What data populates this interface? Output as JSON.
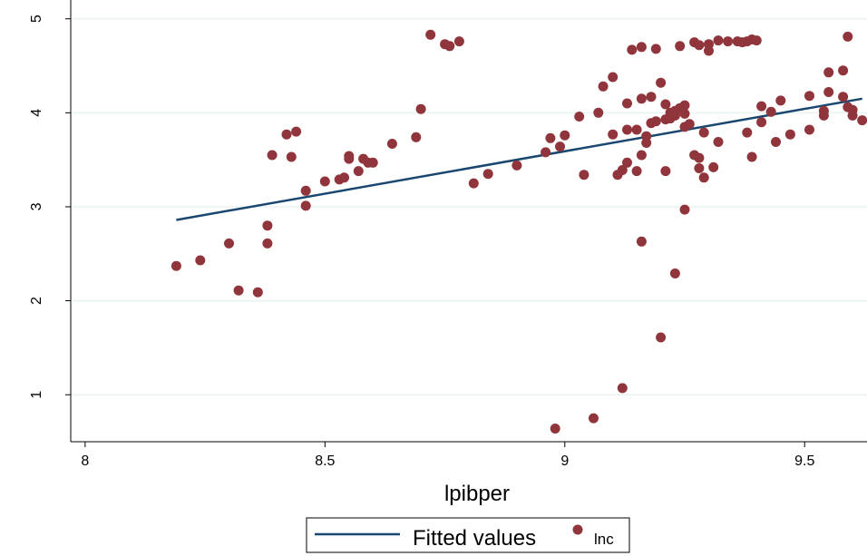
{
  "chart_data": {
    "type": "scatter",
    "title": "",
    "xlabel": "lpibper",
    "ylabel": "",
    "xlim": [
      7.97,
      9.63
    ],
    "ylim": [
      0.5,
      5.2
    ],
    "x_ticks": [
      8,
      8.5,
      9,
      9.5
    ],
    "x_tick_labels": [
      "8",
      "8.5",
      "9",
      "9.5"
    ],
    "y_ticks": [
      1,
      2,
      3,
      4,
      5
    ],
    "y_tick_labels": [
      "1",
      "2",
      "3",
      "4",
      "5"
    ],
    "grid": true,
    "legend_position": "bottom",
    "series": [
      {
        "name": "Fitted values",
        "kind": "line",
        "color": "#1a476f",
        "points": [
          [
            8.19,
            2.86
          ],
          [
            9.62,
            4.15
          ]
        ]
      },
      {
        "name": "lnc",
        "kind": "scatter",
        "color": "#90353b",
        "points": [
          [
            8.19,
            2.37
          ],
          [
            8.24,
            2.43
          ],
          [
            8.3,
            2.61
          ],
          [
            8.32,
            2.11
          ],
          [
            8.36,
            2.09
          ],
          [
            8.38,
            2.8
          ],
          [
            8.38,
            2.61
          ],
          [
            8.39,
            3.55
          ],
          [
            8.42,
            3.77
          ],
          [
            8.43,
            3.53
          ],
          [
            8.44,
            3.8
          ],
          [
            8.46,
            3.01
          ],
          [
            8.46,
            3.17
          ],
          [
            8.5,
            3.27
          ],
          [
            8.53,
            3.29
          ],
          [
            8.54,
            3.31
          ],
          [
            8.55,
            3.54
          ],
          [
            8.55,
            3.51
          ],
          [
            8.57,
            3.38
          ],
          [
            8.58,
            3.51
          ],
          [
            8.59,
            3.47
          ],
          [
            8.6,
            3.47
          ],
          [
            8.64,
            3.67
          ],
          [
            8.69,
            3.74
          ],
          [
            8.7,
            4.04
          ],
          [
            8.72,
            4.83
          ],
          [
            8.75,
            4.73
          ],
          [
            8.76,
            4.71
          ],
          [
            8.78,
            4.76
          ],
          [
            8.81,
            3.25
          ],
          [
            8.84,
            3.35
          ],
          [
            8.9,
            3.44
          ],
          [
            8.96,
            3.58
          ],
          [
            8.97,
            3.73
          ],
          [
            8.98,
            0.64
          ],
          [
            8.99,
            3.64
          ],
          [
            9.0,
            3.76
          ],
          [
            9.03,
            3.96
          ],
          [
            9.04,
            3.34
          ],
          [
            9.06,
            0.75
          ],
          [
            9.07,
            4.0
          ],
          [
            9.08,
            4.28
          ],
          [
            9.1,
            3.77
          ],
          [
            9.1,
            4.38
          ],
          [
            9.11,
            3.34
          ],
          [
            9.12,
            1.07
          ],
          [
            9.12,
            3.39
          ],
          [
            9.13,
            3.47
          ],
          [
            9.13,
            4.1
          ],
          [
            9.13,
            3.82
          ],
          [
            9.14,
            4.67
          ],
          [
            9.15,
            3.38
          ],
          [
            9.15,
            3.82
          ],
          [
            9.16,
            2.63
          ],
          [
            9.16,
            4.15
          ],
          [
            9.16,
            4.7
          ],
          [
            9.16,
            3.55
          ],
          [
            9.17,
            3.75
          ],
          [
            9.17,
            3.68
          ],
          [
            9.18,
            3.89
          ],
          [
            9.18,
            4.17
          ],
          [
            9.19,
            4.68
          ],
          [
            9.19,
            3.91
          ],
          [
            9.2,
            1.61
          ],
          [
            9.2,
            4.32
          ],
          [
            9.21,
            3.93
          ],
          [
            9.21,
            4.09
          ],
          [
            9.21,
            3.38
          ],
          [
            9.22,
            4.0
          ],
          [
            9.22,
            3.94
          ],
          [
            9.23,
            2.29
          ],
          [
            9.23,
            4.02
          ],
          [
            9.23,
            3.97
          ],
          [
            9.24,
            4.71
          ],
          [
            9.24,
            4.05
          ],
          [
            9.25,
            2.97
          ],
          [
            9.25,
            3.85
          ],
          [
            9.25,
            4.08
          ],
          [
            9.25,
            3.99
          ],
          [
            9.26,
            3.88
          ],
          [
            9.27,
            4.75
          ],
          [
            9.27,
            3.55
          ],
          [
            9.28,
            3.52
          ],
          [
            9.28,
            4.72
          ],
          [
            9.28,
            3.41
          ],
          [
            9.29,
            3.79
          ],
          [
            9.29,
            3.31
          ],
          [
            9.3,
            4.73
          ],
          [
            9.3,
            4.66
          ],
          [
            9.31,
            3.42
          ],
          [
            9.32,
            3.69
          ],
          [
            9.32,
            4.77
          ],
          [
            9.34,
            4.76
          ],
          [
            9.36,
            4.76
          ],
          [
            9.37,
            4.75
          ],
          [
            9.38,
            3.79
          ],
          [
            9.38,
            4.76
          ],
          [
            9.39,
            4.78
          ],
          [
            9.39,
            3.53
          ],
          [
            9.4,
            4.77
          ],
          [
            9.41,
            4.07
          ],
          [
            9.41,
            3.9
          ],
          [
            9.43,
            4.01
          ],
          [
            9.44,
            3.69
          ],
          [
            9.45,
            4.13
          ],
          [
            9.47,
            3.77
          ],
          [
            9.51,
            4.18
          ],
          [
            9.51,
            3.82
          ],
          [
            9.54,
            4.02
          ],
          [
            9.54,
            3.97
          ],
          [
            9.55,
            4.22
          ],
          [
            9.55,
            4.43
          ],
          [
            9.58,
            4.17
          ],
          [
            9.58,
            4.45
          ],
          [
            9.59,
            4.06
          ],
          [
            9.59,
            4.81
          ],
          [
            9.6,
            4.03
          ],
          [
            9.6,
            3.97
          ],
          [
            9.62,
            3.92
          ]
        ]
      }
    ]
  }
}
